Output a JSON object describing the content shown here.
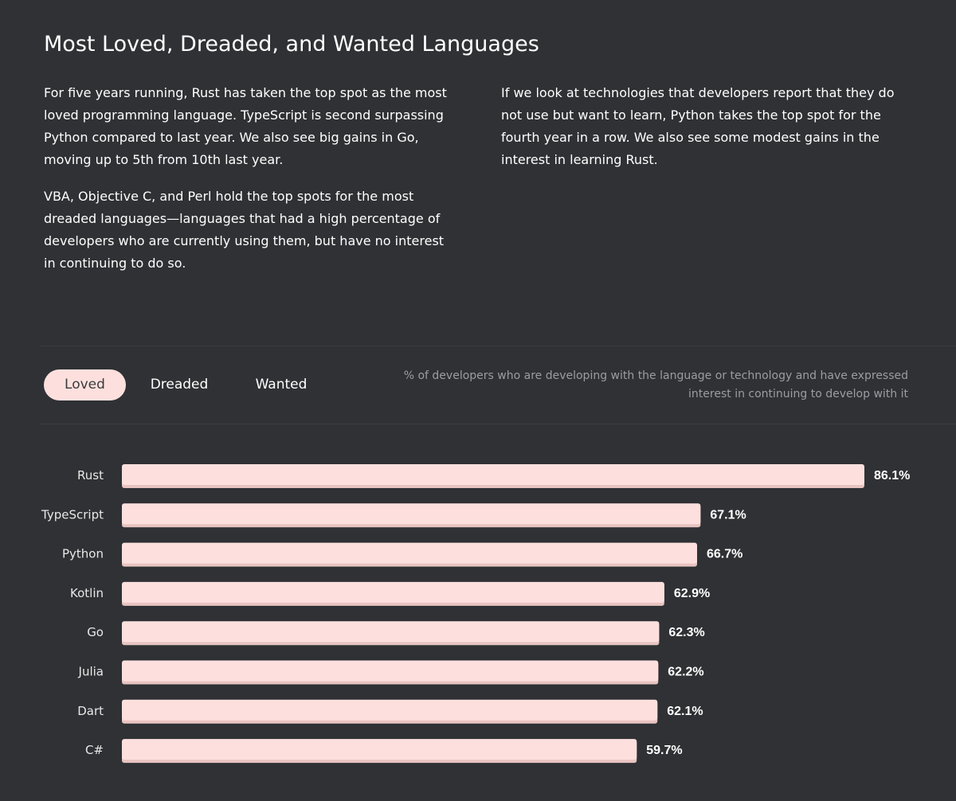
{
  "page": {
    "title": "Most Loved, Dreaded, and Wanted Languages"
  },
  "intro": {
    "para1": "For five years running, Rust has taken the top spot as the most loved programming language. TypeScript is second surpassing Python compared to last year. We also see big gains in Go, moving up to 5th from 10th last year.",
    "para2": "VBA, Objective C, and Perl hold the top spots for the most dreaded languages—languages that had a high percentage of developers who are currently using them, but have no interest in continuing to do so.",
    "para3": "If we look at technologies that developers report that they do not use but want to learn, Python takes the top spot for the fourth year in a row. We also see some modest gains in the interest in learning Rust."
  },
  "tabs": {
    "loved": "Loved",
    "dreaded": "Dreaded",
    "wanted": "Wanted",
    "active": "Loved"
  },
  "chart_caption": "% of developers who are developing with the language or technology and have expressed interest in continuing to develop with it",
  "colors": {
    "background": "#2f3134",
    "bar": "#fde0de",
    "bar_shadow": "#e8c4c1",
    "active_tab": "#fde0de"
  },
  "chart_data": {
    "type": "bar",
    "orientation": "horizontal",
    "title": "Loved",
    "xlabel": "",
    "ylabel": "",
    "categories": [
      "Rust",
      "TypeScript",
      "Python",
      "Kotlin",
      "Go",
      "Julia",
      "Dart",
      "C#"
    ],
    "values": [
      86.1,
      67.1,
      66.7,
      62.9,
      62.3,
      62.2,
      62.1,
      59.7
    ],
    "value_labels": [
      "86.1%",
      "67.1%",
      "66.7%",
      "62.9%",
      "62.3%",
      "62.2%",
      "62.1%",
      "59.7%"
    ],
    "unit": "%",
    "xlim": [
      0,
      86.1
    ],
    "grid": false
  }
}
